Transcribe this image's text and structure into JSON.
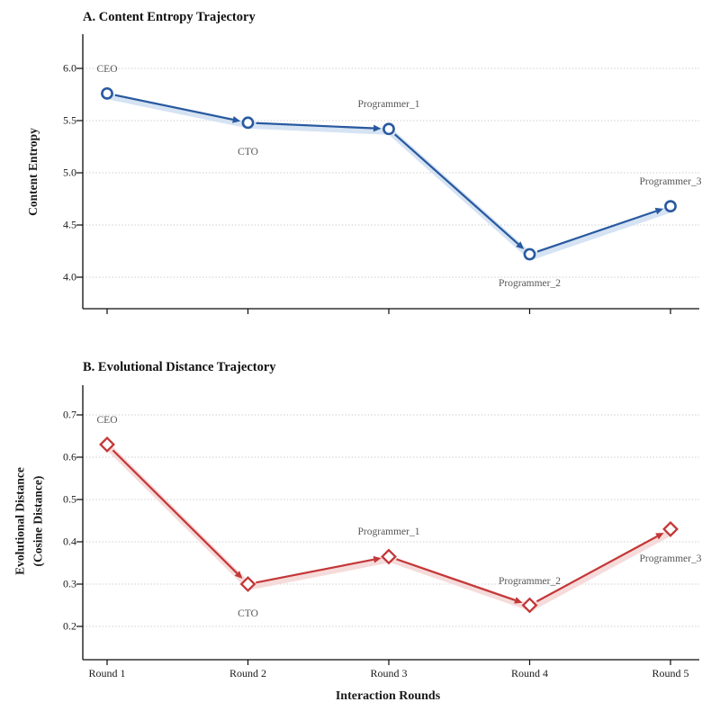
{
  "figure": {
    "xlabel": "Interaction Rounds"
  },
  "chart_data": [
    {
      "type": "line",
      "panel": "A",
      "title": "A. Content Entropy Trajectory",
      "ylabel": "Content Entropy",
      "categories": [
        "Round 1",
        "Round 2",
        "Round 3",
        "Round 4",
        "Round 5"
      ],
      "series": [
        {
          "name": "content-entropy",
          "values": [
            5.76,
            5.48,
            5.42,
            4.22,
            4.68
          ],
          "point_labels": [
            "CEO",
            "CTO",
            "Programmer_1",
            "Programmer_2",
            "Programmer_3"
          ],
          "label_placement": [
            "above",
            "below",
            "above",
            "below",
            "above"
          ]
        }
      ],
      "yticks": [
        "6.0",
        "5.5",
        "5.0",
        "4.5",
        "4.0"
      ],
      "ylim": [
        3.7,
        6.3
      ],
      "marker": "circle",
      "line_color": "#28599f",
      "glow_color": "#d2e0f2",
      "point_label_color": "#575757",
      "grid": "dotted-horizontal",
      "grid_color": "#c7c7c7",
      "show_x_tick_labels": false
    },
    {
      "type": "line",
      "panel": "B",
      "title": "B. Evolutional Distance Trajectory",
      "ylabel_line1": "Evolutional Distance",
      "ylabel_line2": "(Cosine Distance)",
      "categories": [
        "Round 1",
        "Round 2",
        "Round 3",
        "Round 4",
        "Round 5"
      ],
      "series": [
        {
          "name": "evolutional-distance",
          "values": [
            0.63,
            0.3,
            0.365,
            0.25,
            0.43
          ],
          "point_labels": [
            "CEO",
            "CTO",
            "Programmer_1",
            "Programmer_2",
            "Programmer_3"
          ],
          "label_placement": [
            "above",
            "below",
            "above",
            "above",
            "below"
          ]
        }
      ],
      "yticks": [
        "0.7",
        "0.6",
        "0.5",
        "0.4",
        "0.3",
        "0.2"
      ],
      "ylim": [
        0.125,
        0.77
      ],
      "marker": "diamond",
      "line_color": "#c43737",
      "glow_color": "#f6d8d8",
      "point_label_color": "#575757",
      "grid": "dotted-horizontal",
      "grid_color": "#c7c7c7",
      "show_x_tick_labels": true
    }
  ]
}
